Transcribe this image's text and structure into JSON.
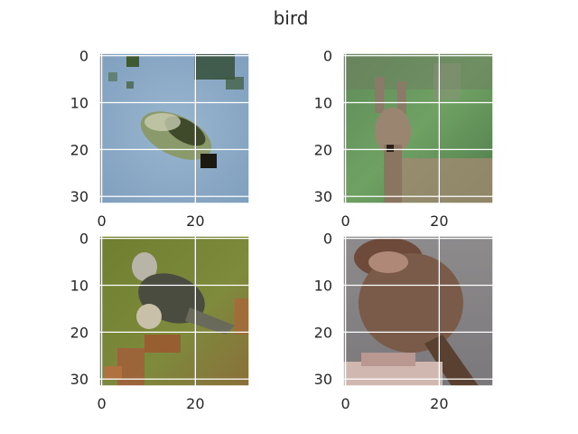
{
  "title": "bird",
  "chart_data": {
    "type": "image-grid",
    "title": "bird",
    "rows": 2,
    "cols": 2,
    "grid": true,
    "panels": [
      {
        "image": "photo of a bird on water",
        "xticks": [
          0,
          20
        ],
        "yticks": [
          0,
          10,
          20,
          30
        ],
        "xlim": [
          -0.5,
          31.5
        ],
        "ylim": [
          31.5,
          -0.5
        ],
        "show_xticklabels": true
      },
      {
        "image": "photo of a deer on grass",
        "xticks": [
          0,
          20
        ],
        "yticks": [
          0,
          10,
          20,
          30
        ],
        "xlim": [
          -0.5,
          31.5
        ],
        "ylim": [
          31.5,
          -0.5
        ],
        "show_xticklabels": true
      },
      {
        "image": "photo of a small bird on a branch",
        "xticks": [
          0,
          20
        ],
        "yticks": [
          0,
          10,
          20,
          30
        ],
        "xlim": [
          -0.5,
          31.5
        ],
        "ylim": [
          31.5,
          -0.5
        ],
        "show_xticklabels": true
      },
      {
        "image": "close-up photo of a brown bird",
        "xticks": [
          0,
          20
        ],
        "yticks": [
          0,
          10,
          20,
          30
        ],
        "xlim": [
          -0.5,
          31.5
        ],
        "ylim": [
          31.5,
          -0.5
        ],
        "show_xticklabels": true
      }
    ]
  }
}
